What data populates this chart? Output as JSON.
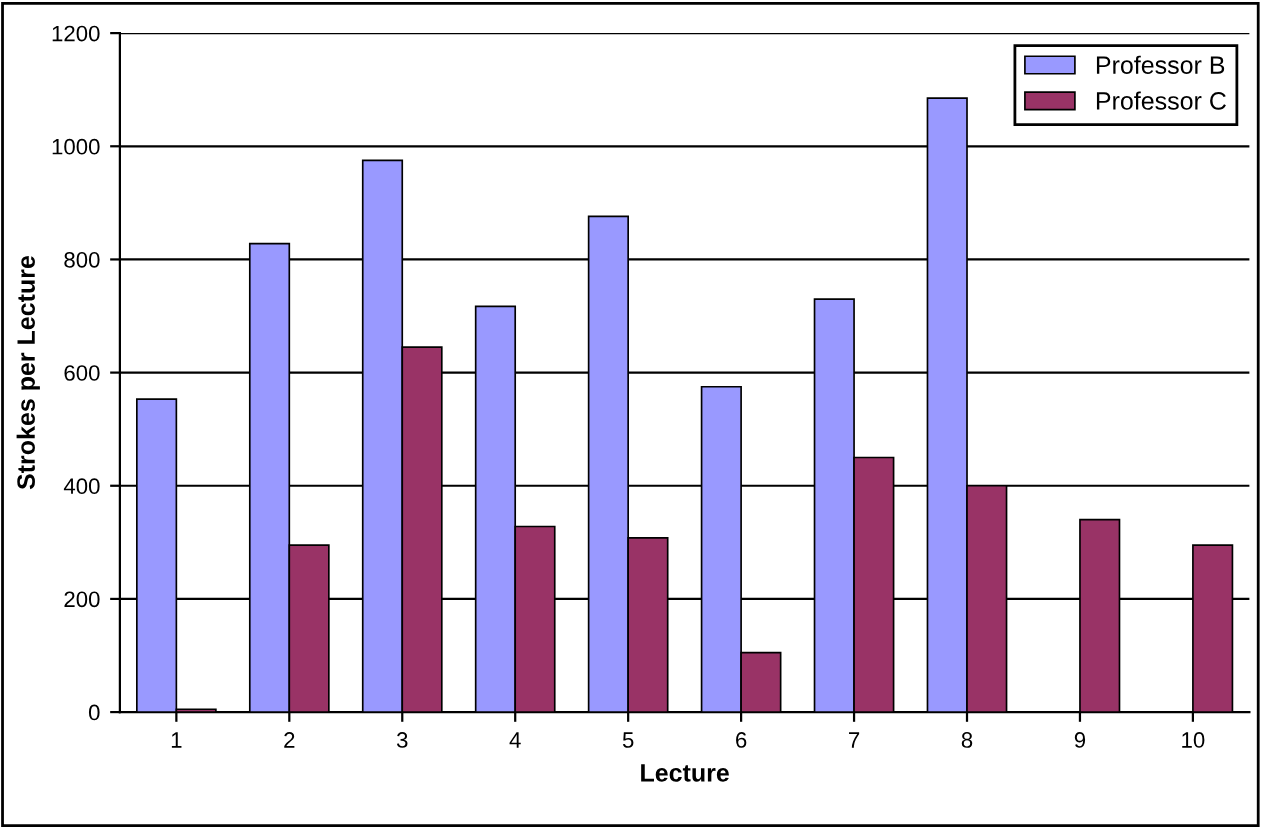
{
  "chart_data": {
    "type": "bar",
    "xlabel": "Lecture",
    "ylabel": "Strokes per Lecture",
    "categories": [
      "1",
      "2",
      "3",
      "4",
      "5",
      "6",
      "7",
      "8",
      "9",
      "10"
    ],
    "series": [
      {
        "name": "Professor B",
        "color": "#9999ff",
        "values": [
          553,
          828,
          975,
          717,
          876,
          575,
          730,
          1085,
          null,
          null
        ]
      },
      {
        "name": "Professor C",
        "color": "#993366",
        "values": [
          5,
          295,
          645,
          328,
          308,
          105,
          450,
          400,
          340,
          295
        ]
      }
    ],
    "ylim": [
      0,
      1200
    ],
    "yticks": [
      0,
      200,
      400,
      600,
      800,
      1000,
      1200
    ],
    "grid": "y",
    "legend": "top right"
  }
}
